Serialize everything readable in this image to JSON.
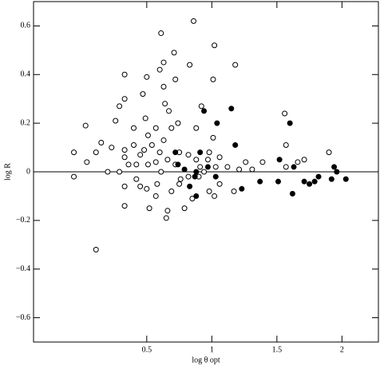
{
  "chart_data": {
    "type": "scatter",
    "xlabel": "log θ opt",
    "ylabel": "log R",
    "xlim": [
      -0.37,
      2.28
    ],
    "ylim": [
      -0.7,
      0.7
    ],
    "xticks": [
      0.5,
      1,
      1.5,
      2
    ],
    "yticks": [
      {
        "value": -0.6,
        "label": "−0.6"
      },
      {
        "value": -0.4,
        "label": "−0.4"
      },
      {
        "value": -0.2,
        "label": "−0.2"
      },
      0,
      0.2,
      0.4,
      0.6
    ],
    "reference_line": 0,
    "series": [
      {
        "marker": "open",
        "color": "#000000",
        "x": [
          -0.06,
          -0.06,
          0.03,
          0.04,
          0.11,
          0.15,
          0.11,
          0.26,
          0.29,
          0.33,
          0.33,
          0.33,
          0.33,
          0.33,
          0.33,
          0.4,
          0.4,
          0.42,
          0.45,
          0.47,
          0.49,
          0.5,
          0.51,
          0.51,
          0.5,
          0.52,
          0.57,
          0.6,
          0.61,
          0.63,
          0.63,
          0.64,
          0.66,
          0.65,
          0.67,
          0.69,
          0.71,
          0.72,
          0.83,
          0.86,
          0.88,
          0.92,
          1.01,
          1.02,
          1.18,
          1.56,
          1.66,
          1.71,
          1.9,
          1.57,
          1.57,
          1.17,
          1.06,
          0.98,
          1.02,
          0.79,
          0.85,
          0.69,
          0.75,
          0.58,
          0.61,
          0.6,
          0.66,
          0.72,
          0.75,
          0.82,
          0.88,
          0.91,
          0.97,
          1.03,
          1.12,
          1.21,
          1.26,
          1.31,
          1.39,
          0.54,
          0.48,
          0.42,
          0.45,
          0.57,
          0.63,
          0.76,
          0.82,
          0.9,
          0.94,
          0.74,
          0.98,
          1.06,
          0.23,
          0.2,
          0.29,
          0.36,
          0.57,
          1.01
        ],
        "values": [
          0.08,
          -0.02,
          0.19,
          0.04,
          0.08,
          0.12,
          -0.32,
          0.21,
          0.27,
          0.3,
          0.4,
          0.09,
          0.06,
          -0.06,
          -0.14,
          0.18,
          0.11,
          -0.03,
          -0.06,
          0.32,
          0.22,
          0.39,
          0.15,
          0.03,
          -0.07,
          -0.15,
          0.18,
          0.42,
          0.57,
          0.45,
          0.35,
          0.28,
          -0.16,
          -0.19,
          0.25,
          0.18,
          0.49,
          0.38,
          0.44,
          0.62,
          0.18,
          0.27,
          0.38,
          0.52,
          0.44,
          0.24,
          0.04,
          0.05,
          0.08,
          0.11,
          0.02,
          -0.08,
          -0.05,
          -0.08,
          -0.1,
          -0.15,
          -0.11,
          -0.08,
          -0.05,
          -0.05,
          0.0,
          0.08,
          0.05,
          0.03,
          0.08,
          0.07,
          0.05,
          0.02,
          0.05,
          0.02,
          0.02,
          0.01,
          0.04,
          0.01,
          0.04,
          0.11,
          0.09,
          0.03,
          0.07,
          0.04,
          0.13,
          -0.03,
          -0.02,
          -0.02,
          0.0,
          0.2,
          0.08,
          0.06,
          0.1,
          0.0,
          0.0,
          0.03,
          -0.1,
          0.14
        ]
      },
      {
        "marker": "filled",
        "color": "#000000",
        "x": [
          0.94,
          1.15,
          1.04,
          1.18,
          1.6,
          1.52,
          1.63,
          0.87,
          0.88,
          0.79,
          0.72,
          0.74,
          0.91,
          0.97,
          1.03,
          1.23,
          1.37,
          1.51,
          1.62,
          1.71,
          1.75,
          1.79,
          1.82,
          1.92,
          1.94,
          1.96,
          2.03,
          0.83,
          0.88
        ],
        "values": [
          0.25,
          0.26,
          0.2,
          0.11,
          0.2,
          0.05,
          0.02,
          -0.02,
          -0.1,
          0.01,
          0.08,
          0.03,
          0.08,
          0.02,
          -0.02,
          -0.07,
          -0.04,
          -0.04,
          -0.09,
          -0.04,
          -0.05,
          -0.04,
          -0.02,
          -0.03,
          0.02,
          0.0,
          -0.03,
          -0.06,
          0.0
        ]
      }
    ]
  }
}
